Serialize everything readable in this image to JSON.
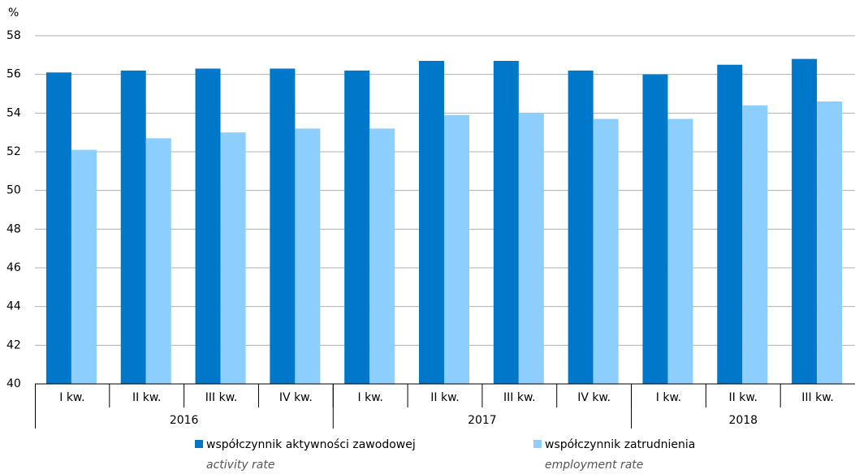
{
  "chart_data": {
    "type": "bar",
    "y_unit": "%",
    "categories": [
      "I kw.",
      "II kw.",
      "III kw.",
      "IV kw.",
      "I kw.",
      "II kw.",
      "III kw.",
      "IV kw.",
      "I kw.",
      "II kw.",
      "III kw."
    ],
    "groups": [
      {
        "name": "2016",
        "span": 4
      },
      {
        "name": "2017",
        "span": 4
      },
      {
        "name": "2018",
        "span": 3
      }
    ],
    "series": [
      {
        "name": "współczynnik aktywności zawodowej",
        "subtitle": "activity rate",
        "color": "#0077c8",
        "values": [
          56.1,
          56.2,
          56.3,
          56.3,
          56.2,
          56.7,
          56.7,
          56.2,
          56.0,
          56.5,
          56.8
        ]
      },
      {
        "name": "współczynnik zatrudnienia",
        "subtitle": "employment rate",
        "color": "#8ccfff",
        "values": [
          52.1,
          52.7,
          53.0,
          53.2,
          53.2,
          53.9,
          54.0,
          53.7,
          53.7,
          54.4,
          54.6
        ]
      }
    ],
    "ylim": [
      40,
      58
    ],
    "yticks": [
      40,
      42,
      44,
      46,
      48,
      50,
      52,
      54,
      56,
      58
    ],
    "grid": true
  }
}
